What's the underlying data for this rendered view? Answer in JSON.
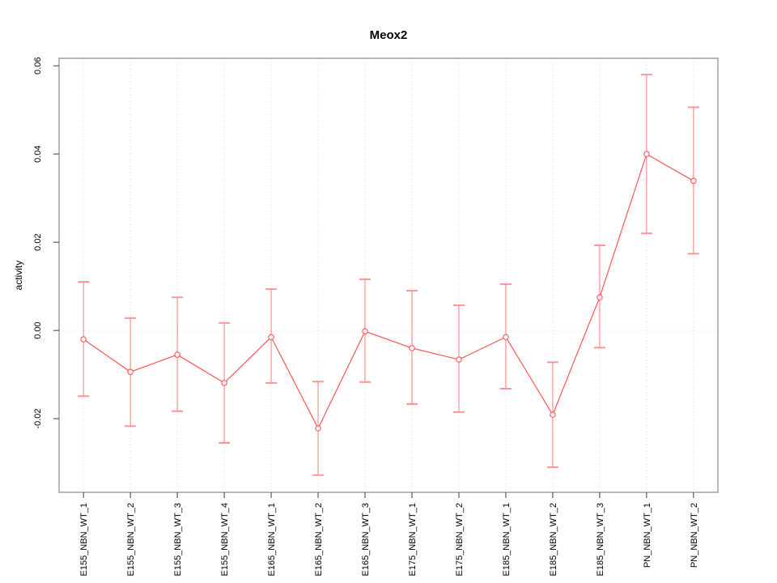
{
  "chart_data": {
    "type": "line",
    "title": "Meox2",
    "ylabel": "activity",
    "xlabel": "",
    "marker": "open-circle",
    "legend": "none",
    "grid": {
      "vertical": "dotted line at every category",
      "horizontal": "dotted line at y=0 only"
    },
    "categories": [
      "E155_NBN_WT_1",
      "E155_NBN_WT_2",
      "E155_NBN_WT_3",
      "E155_NBN_WT_4",
      "E165_NBN_WT_1",
      "E165_NBN_WT_2",
      "E165_NBN_WT_3",
      "E175_NBN_WT_1",
      "E175_NBN_WT_2",
      "E185_NBN_WT_1",
      "E185_NBN_WT_2",
      "E185_NBN_WT_3",
      "PN_NBN_WT_1",
      "PN_NBN_WT_2"
    ],
    "series": [
      {
        "name": "activity",
        "values": [
          -0.002,
          -0.0094,
          -0.0055,
          -0.0119,
          -0.0015,
          -0.0222,
          -0.0002,
          -0.004,
          -0.0066,
          -0.0015,
          -0.0191,
          0.0075,
          0.04,
          0.0339
        ],
        "err_high": [
          0.011,
          0.0028,
          0.0075,
          0.0017,
          0.0094,
          -0.0116,
          0.0116,
          0.009,
          0.0057,
          0.0105,
          -0.0072,
          0.0193,
          0.058,
          0.0506
        ],
        "err_low": [
          -0.0149,
          -0.0217,
          -0.0183,
          -0.0255,
          -0.0119,
          -0.0328,
          -0.0117,
          -0.0167,
          -0.0185,
          -0.0132,
          -0.031,
          -0.0039,
          0.022,
          0.0174
        ]
      }
    ],
    "yticks": [
      {
        "value": -0.02,
        "label": "-0.02"
      },
      {
        "value": 0.0,
        "label": "0.00"
      },
      {
        "value": 0.02,
        "label": "0.02"
      },
      {
        "value": 0.04,
        "label": "0.04"
      },
      {
        "value": 0.06,
        "label": "0.06"
      }
    ],
    "ylim": [
      -0.0367,
      0.0617
    ],
    "colors": {
      "series": "#ff5555",
      "error": "#ff7a7a",
      "cap": "#ff9595",
      "grid": "#dcdcdc",
      "border": "#8a8a8a",
      "tick": "#3a3a3a",
      "text": "#000000",
      "background": "#ffffff"
    }
  }
}
